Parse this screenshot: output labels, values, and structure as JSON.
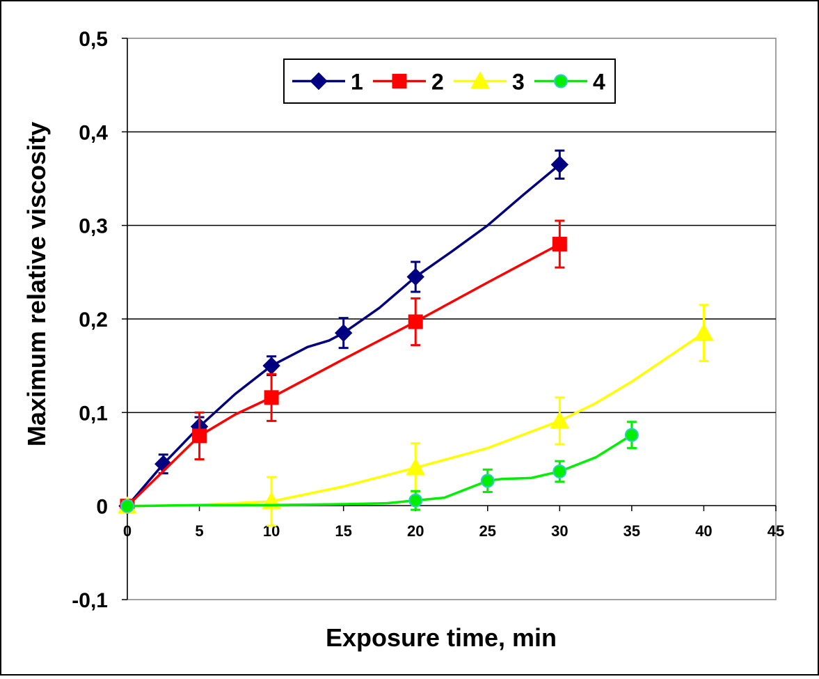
{
  "chart_data": {
    "type": "line",
    "title": "",
    "xlabel": "Exposure time, min",
    "ylabel": "Maximum relative viscosity",
    "xlim": [
      0,
      45
    ],
    "ylim": [
      -0.1,
      0.5
    ],
    "x_ticks": [
      0,
      5,
      10,
      15,
      20,
      25,
      30,
      35,
      40,
      45
    ],
    "x_tick_labels": [
      "0",
      "5",
      "10",
      "15",
      "20",
      "25",
      "30",
      "35",
      "40",
      "45"
    ],
    "y_ticks": [
      -0.1,
      0,
      0.1,
      0.2,
      0.3,
      0.4,
      0.5
    ],
    "y_tick_labels": [
      "-0,1",
      "0",
      "0,1",
      "0,2",
      "0,3",
      "0,4",
      "0,5"
    ],
    "grid": "horizontal",
    "legend_position": "top-center",
    "series": [
      {
        "name": "1",
        "color": "#000080",
        "marker": "diamond",
        "x": [
          0,
          2.5,
          5,
          10,
          15,
          20,
          30
        ],
        "y": [
          0,
          0.045,
          0.085,
          0.15,
          0.185,
          0.245,
          0.365
        ],
        "error": [
          0.005,
          0.01,
          0.01,
          0.01,
          0.016,
          0.016,
          0.015
        ],
        "curve": [
          [
            0,
            0
          ],
          [
            2.5,
            0.045
          ],
          [
            5,
            0.085
          ],
          [
            7.5,
            0.12
          ],
          [
            10,
            0.15
          ],
          [
            12.5,
            0.17
          ],
          [
            14,
            0.177
          ],
          [
            15,
            0.185
          ],
          [
            17.5,
            0.212
          ],
          [
            20,
            0.245
          ],
          [
            22.5,
            0.272
          ],
          [
            25,
            0.3
          ],
          [
            27.5,
            0.333
          ],
          [
            30,
            0.365
          ]
        ]
      },
      {
        "name": "2",
        "color": "#ff0000",
        "marker": "square",
        "x": [
          0,
          5,
          10,
          20,
          30
        ],
        "y": [
          0,
          0.075,
          0.116,
          0.197,
          0.28
        ],
        "error": [
          0.005,
          0.025,
          0.025,
          0.025,
          0.025
        ],
        "curve": [
          [
            0,
            0
          ],
          [
            5,
            0.075
          ],
          [
            7.5,
            0.098
          ],
          [
            10,
            0.116
          ],
          [
            15,
            0.157
          ],
          [
            20,
            0.197
          ],
          [
            25,
            0.239
          ],
          [
            30,
            0.28
          ]
        ]
      },
      {
        "name": "3",
        "color": "#ffff00",
        "marker": "triangle",
        "x": [
          0,
          10,
          20,
          30,
          40
        ],
        "y": [
          0,
          0.005,
          0.041,
          0.091,
          0.185
        ],
        "error": [
          0.005,
          0.026,
          0.026,
          0.025,
          0.03
        ],
        "curve": [
          [
            0,
            0
          ],
          [
            5,
            0.001
          ],
          [
            10,
            0.005
          ],
          [
            15,
            0.021
          ],
          [
            20,
            0.041
          ],
          [
            25,
            0.062
          ],
          [
            30,
            0.091
          ],
          [
            32.5,
            0.11
          ],
          [
            35,
            0.133
          ],
          [
            40,
            0.185
          ]
        ]
      },
      {
        "name": "4",
        "color": "#00ee00",
        "marker": "circle",
        "x": [
          0,
          20,
          25,
          30,
          35
        ],
        "y": [
          0,
          0.006,
          0.027,
          0.037,
          0.076
        ],
        "error": [
          0.003,
          0.01,
          0.012,
          0.011,
          0.014
        ],
        "curve": [
          [
            0,
            0
          ],
          [
            5,
            0.001
          ],
          [
            10,
            0.001
          ],
          [
            15,
            0.002
          ],
          [
            18,
            0.003
          ],
          [
            20,
            0.006
          ],
          [
            22,
            0.009
          ],
          [
            24,
            0.021
          ],
          [
            25,
            0.027
          ],
          [
            26,
            0.029
          ],
          [
            28,
            0.03
          ],
          [
            30,
            0.037
          ],
          [
            32.5,
            0.052
          ],
          [
            35,
            0.076
          ]
        ]
      }
    ]
  }
}
